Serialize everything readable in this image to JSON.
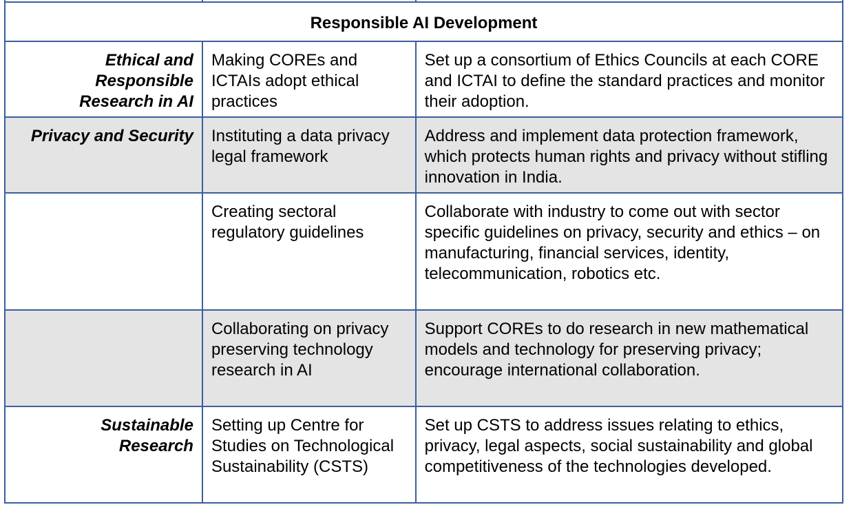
{
  "section_title": "Responsible AI Development",
  "rows": [
    {
      "category": "Ethical and\nResponsible\nResearch in AI",
      "initiative": "Making COREs and ICTAIs adopt ethical practices",
      "action": "Set up a consortium of Ethics Councils at each CORE and ICTAI to define the standard practices and monitor their adoption.",
      "shaded": false
    },
    {
      "category": "Privacy and Security",
      "initiative": "Instituting a data privacy legal framework",
      "action": "Address and implement data protection framework, which protects human rights and privacy without stifling innovation in India.",
      "shaded": true
    },
    {
      "category": "",
      "initiative": "Creating sectoral regulatory guidelines",
      "action": "Collaborate with industry to come out with sector specific guidelines on privacy, security and ethics – on manufacturing, financial services, identity, telecommunication, robotics etc.",
      "shaded": false
    },
    {
      "category": "",
      "initiative": "Collaborating on privacy preserving technology research in AI",
      "action": "Support COREs to do research in new mathematical models and technology for preserving privacy; encourage international collaboration.",
      "shaded": true
    },
    {
      "category": "Sustainable\nResearch",
      "initiative": "Setting up Centre for Studies on Technological Sustainability (CSTS)",
      "action": "Set up CSTS to address issues relating to ethics, privacy, legal aspects, social sustainability and global competitiveness of the technologies developed.",
      "shaded": false
    }
  ]
}
